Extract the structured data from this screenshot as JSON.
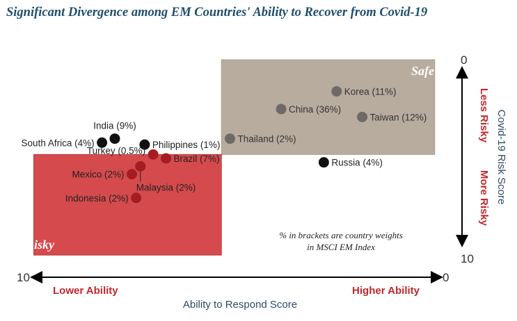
{
  "colors": {
    "title": "#1f4e6e",
    "risky_zone": "#d54a4c",
    "risky_border": "#b83a3d",
    "safe_zone": "#b8ac9f",
    "safe_border": "#a99d90",
    "dot_black": "#111111",
    "dot_red": "#a51c22",
    "dot_gray": "#6f6a66",
    "accent_red": "#c0282d",
    "axis_blue": "#2e4a66"
  },
  "chart_data": {
    "type": "scatter",
    "title": "Significant Divergence among EM Countries' Ability to Recover from Covid-19",
    "xlabel": "Ability to Respond Score",
    "ylabel": "Covid-19 Risk Score",
    "x_tick_left": "10",
    "x_tick_right": "0",
    "y_tick_top": "0",
    "y_tick_bottom": "10",
    "x_caption_left": "Lower Ability",
    "x_caption_right": "Higher Ability",
    "y_caption_top": "Less Risky",
    "y_caption_bottom": "More Risky",
    "xlim": [
      10,
      0
    ],
    "ylim": [
      0,
      10
    ],
    "zones": [
      {
        "label": "Safe",
        "x_range": [
          5.2,
          0.2
        ],
        "y_range": [
          0.0,
          4.8
        ]
      },
      {
        "label": "Risky",
        "x_range": [
          9.6,
          5.2
        ],
        "y_range": [
          4.8,
          9.9
        ]
      }
    ],
    "note_line1": "% in brackets are country weights",
    "note_line2": "in MSCI EM Index",
    "points": [
      {
        "name": "Korea (11%)",
        "x": 2.5,
        "y": 1.6,
        "color": "gray",
        "label_side": "right"
      },
      {
        "name": "China (36%)",
        "x": 3.8,
        "y": 2.5,
        "color": "gray",
        "label_side": "right"
      },
      {
        "name": "Taiwan (12%)",
        "x": 1.9,
        "y": 2.9,
        "color": "gray",
        "label_side": "right"
      },
      {
        "name": "Thailand (2%)",
        "x": 5.0,
        "y": 4.0,
        "color": "gray",
        "label_side": "right"
      },
      {
        "name": "Russia (4%)",
        "x": 2.8,
        "y": 5.2,
        "color": "black",
        "label_side": "right"
      },
      {
        "name": "India (9%)",
        "x": 7.7,
        "y": 4.0,
        "color": "black",
        "label_side": "above"
      },
      {
        "name": "South Africa (4%)",
        "x": 8.0,
        "y": 4.2,
        "color": "black",
        "label_side": "left"
      },
      {
        "name": "Philippines (1%)",
        "x": 7.0,
        "y": 4.3,
        "color": "black",
        "label_side": "right"
      },
      {
        "name": "Turkey (0.5%)",
        "x": 6.8,
        "y": 4.8,
        "color": "red",
        "label_side": "left_up"
      },
      {
        "name": "Brazil (7%)",
        "x": 6.5,
        "y": 5.0,
        "color": "red",
        "label_side": "right"
      },
      {
        "name": "Malaysia (2%)",
        "x": 7.1,
        "y": 5.4,
        "color": "red",
        "label_side": "below_right"
      },
      {
        "name": "Mexico (2%)",
        "x": 7.3,
        "y": 5.8,
        "color": "red",
        "label_side": "left"
      },
      {
        "name": "Indonesia (2%)",
        "x": 7.2,
        "y": 7.0,
        "color": "red",
        "label_side": "left"
      }
    ]
  }
}
